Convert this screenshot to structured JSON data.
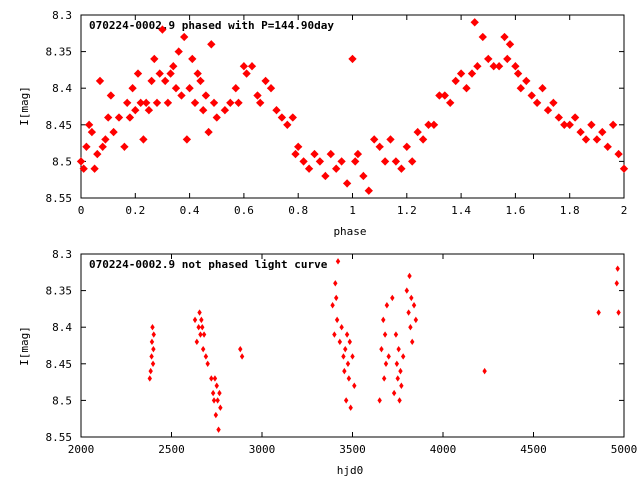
{
  "chart_data": [
    {
      "type": "scatter",
      "title": "070224-0002.9 phased with P=144.90day",
      "xlabel": "phase",
      "ylabel": "I[mag]",
      "xlim": [
        0,
        2
      ],
      "ylim": [
        8.55,
        8.3
      ],
      "y_inverted": true,
      "grid": false,
      "marker": "star",
      "color": "#ff0000",
      "xticks": [
        "0",
        "0.2",
        "0.4",
        "0.6",
        "0.8",
        "1",
        "1.2",
        "1.4",
        "1.6",
        "1.8",
        "2"
      ],
      "yticks": [
        "8.3",
        "8.35",
        "8.4",
        "8.45",
        "8.5",
        "8.55"
      ],
      "series": [
        {
          "x": [
            0.0,
            0.01,
            0.02,
            0.03,
            0.04,
            0.05,
            0.06,
            0.07,
            0.08,
            0.09,
            0.1,
            0.11,
            0.12,
            0.14,
            0.16,
            0.17,
            0.18,
            0.19,
            0.2,
            0.21,
            0.22,
            0.23,
            0.24,
            0.25,
            0.26,
            0.27,
            0.28,
            0.29,
            0.3,
            0.31,
            0.32,
            0.33,
            0.34,
            0.35,
            0.36,
            0.37,
            0.38,
            0.39,
            0.4,
            0.41,
            0.42,
            0.43,
            0.44,
            0.45,
            0.46,
            0.47,
            0.48,
            0.49,
            0.5,
            0.53,
            0.55,
            0.57,
            0.58,
            0.6,
            0.61,
            0.63,
            0.65,
            0.66,
            0.68,
            0.7,
            0.72,
            0.74,
            0.76,
            0.78,
            0.79,
            0.8,
            0.82,
            0.84,
            0.86,
            0.88,
            0.9,
            0.92,
            0.94,
            0.96,
            0.98,
            1.0,
            1.01,
            1.02,
            1.04,
            1.06,
            1.08,
            1.1,
            1.12,
            1.14,
            1.16,
            1.18,
            1.2,
            1.22,
            1.24,
            1.26,
            1.28,
            1.3,
            1.32,
            1.34,
            1.36,
            1.38,
            1.4,
            1.42,
            1.44,
            1.45,
            1.46,
            1.48,
            1.5,
            1.52,
            1.54,
            1.56,
            1.57,
            1.58,
            1.6,
            1.61,
            1.62,
            1.64,
            1.66,
            1.68,
            1.7,
            1.72,
            1.74,
            1.76,
            1.78,
            1.8,
            1.82,
            1.84,
            1.86,
            1.88,
            1.9,
            1.92,
            1.94,
            1.96,
            1.98,
            2.0
          ],
          "y": [
            8.5,
            8.51,
            8.48,
            8.45,
            8.46,
            8.51,
            8.49,
            8.39,
            8.48,
            8.47,
            8.44,
            8.41,
            8.46,
            8.44,
            8.48,
            8.42,
            8.44,
            8.4,
            8.43,
            8.38,
            8.42,
            8.47,
            8.42,
            8.43,
            8.39,
            8.36,
            8.42,
            8.38,
            8.32,
            8.39,
            8.42,
            8.38,
            8.37,
            8.4,
            8.35,
            8.41,
            8.33,
            8.47,
            8.4,
            8.36,
            8.42,
            8.38,
            8.39,
            8.43,
            8.41,
            8.46,
            8.34,
            8.42,
            8.44,
            8.43,
            8.42,
            8.4,
            8.42,
            8.37,
            8.38,
            8.37,
            8.41,
            8.42,
            8.39,
            8.4,
            8.43,
            8.44,
            8.45,
            8.44,
            8.49,
            8.48,
            8.5,
            8.51,
            8.49,
            8.5,
            8.52,
            8.49,
            8.51,
            8.5,
            8.53,
            8.36,
            8.5,
            8.49,
            8.52,
            8.54,
            8.47,
            8.48,
            8.5,
            8.47,
            8.5,
            8.51,
            8.48,
            8.5,
            8.46,
            8.47,
            8.45,
            8.45,
            8.41,
            8.41,
            8.42,
            8.39,
            8.38,
            8.4,
            8.38,
            8.31,
            8.37,
            8.33,
            8.36,
            8.37,
            8.37,
            8.33,
            8.36,
            8.34,
            8.37,
            8.38,
            8.4,
            8.39,
            8.41,
            8.42,
            8.4,
            8.43,
            8.42,
            8.44,
            8.45,
            8.45,
            8.44,
            8.46,
            8.47,
            8.45,
            8.47,
            8.46,
            8.48,
            8.45,
            8.49,
            8.51
          ]
        }
      ]
    },
    {
      "type": "scatter",
      "title": "070224-0002.9 not phased light curve",
      "xlabel": "hjd0",
      "ylabel": "I[mag]",
      "xlim": [
        2000,
        5000
      ],
      "ylim": [
        8.55,
        8.3
      ],
      "y_inverted": true,
      "grid": false,
      "marker": "diamond",
      "color": "#ff0000",
      "xticks": [
        "2000",
        "2500",
        "3000",
        "3500",
        "4000",
        "4500",
        "5000"
      ],
      "yticks": [
        "8.3",
        "8.35",
        "8.4",
        "8.45",
        "8.5",
        "8.55"
      ],
      "series": [
        {
          "x": [
            2380,
            2385,
            2390,
            2392,
            2395,
            2398,
            2400,
            2402,
            2630,
            2640,
            2650,
            2655,
            2660,
            2665,
            2670,
            2675,
            2680,
            2690,
            2700,
            2720,
            2730,
            2735,
            2740,
            2745,
            2750,
            2755,
            2760,
            2765,
            2770,
            2880,
            2890,
            3390,
            3400,
            3405,
            3410,
            3415,
            3420,
            3430,
            3440,
            3450,
            3455,
            3460,
            3465,
            3470,
            3475,
            3480,
            3485,
            3490,
            3500,
            3510,
            3650,
            3660,
            3670,
            3675,
            3680,
            3685,
            3690,
            3700,
            3720,
            3730,
            3740,
            3745,
            3750,
            3755,
            3760,
            3765,
            3770,
            3780,
            3800,
            3810,
            3815,
            3820,
            3825,
            3830,
            3840,
            3850,
            4230,
            4860,
            4960,
            4965,
            4970
          ],
          "y": [
            8.47,
            8.46,
            8.44,
            8.42,
            8.4,
            8.45,
            8.43,
            8.41,
            8.39,
            8.42,
            8.4,
            8.38,
            8.41,
            8.39,
            8.4,
            8.43,
            8.41,
            8.44,
            8.45,
            8.47,
            8.49,
            8.5,
            8.47,
            8.52,
            8.48,
            8.5,
            8.54,
            8.49,
            8.51,
            8.43,
            8.44,
            8.37,
            8.41,
            8.34,
            8.36,
            8.39,
            8.31,
            8.42,
            8.4,
            8.44,
            8.46,
            8.43,
            8.5,
            8.41,
            8.45,
            8.47,
            8.42,
            8.51,
            8.44,
            8.48,
            8.5,
            8.43,
            8.39,
            8.47,
            8.41,
            8.45,
            8.37,
            8.44,
            8.36,
            8.49,
            8.41,
            8.45,
            8.47,
            8.43,
            8.5,
            8.46,
            8.48,
            8.44,
            8.35,
            8.38,
            8.33,
            8.4,
            8.36,
            8.42,
            8.37,
            8.39,
            8.46,
            8.38,
            8.34,
            8.32,
            8.38
          ]
        }
      ]
    }
  ]
}
